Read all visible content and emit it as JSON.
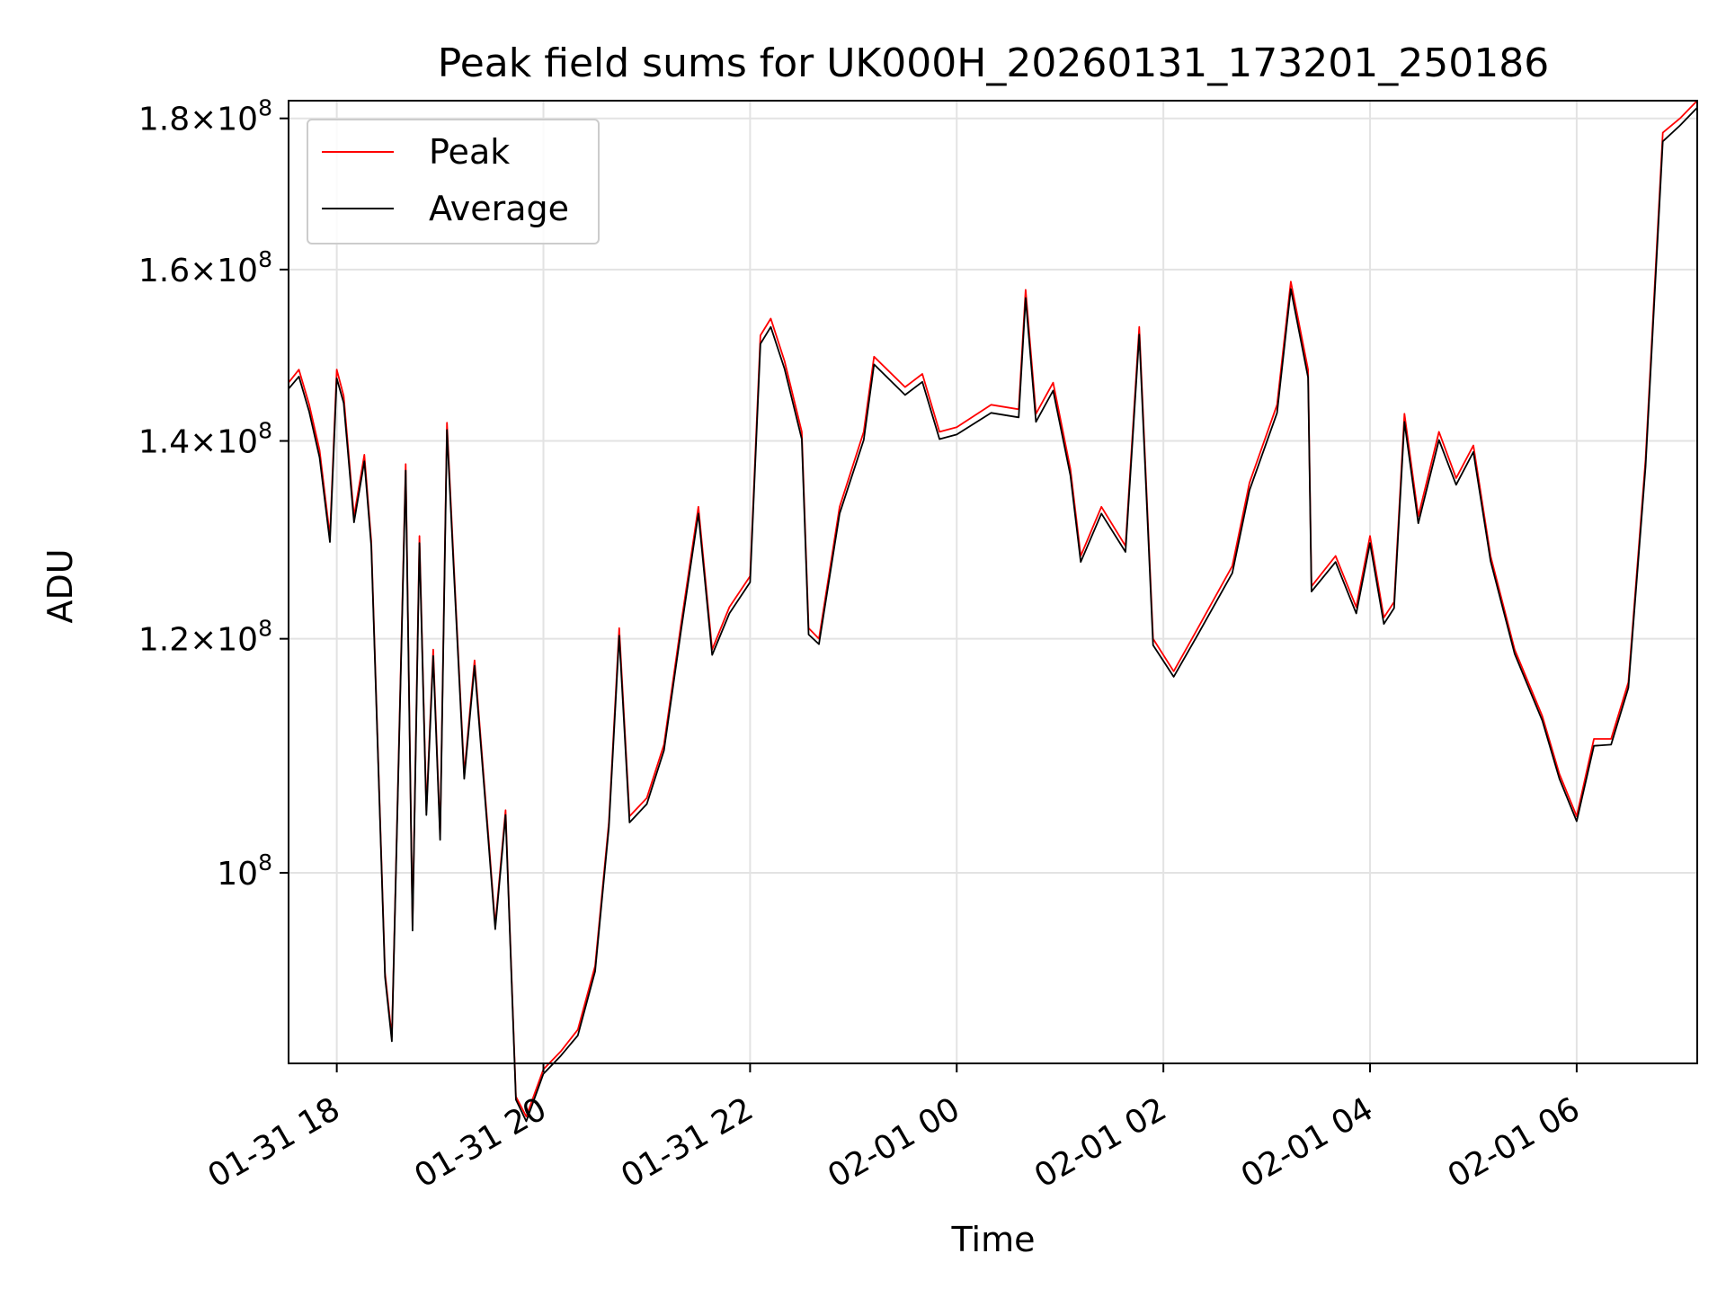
{
  "chart_data": {
    "type": "line",
    "title": "Peak field sums for UK000H_20260131_173201_250186",
    "xlabel": "Time",
    "ylabel": "ADU",
    "y_scale": "log",
    "grid": true,
    "legend_position": "top-left",
    "xlim": [
      "2026-01-31 17:32",
      "2026-02-01 07:10"
    ],
    "ylim": [
      86200000,
      182500000
    ],
    "x_ticks": [
      {
        "value": "2026-01-31 18:00",
        "label": "01-31 18"
      },
      {
        "value": "2026-01-31 20:00",
        "label": "01-31 20"
      },
      {
        "value": "2026-01-31 22:00",
        "label": "01-31 22"
      },
      {
        "value": "2026-02-01 00:00",
        "label": "02-01 00"
      },
      {
        "value": "2026-02-01 02:00",
        "label": "02-01 02"
      },
      {
        "value": "2026-02-01 04:00",
        "label": "02-01 04"
      },
      {
        "value": "2026-02-01 06:00",
        "label": "02-01 06"
      }
    ],
    "y_ticks": [
      {
        "value": 100000000,
        "mantissa": "",
        "exponent": "8"
      },
      {
        "value": 120000000,
        "mantissa": "1.2",
        "exponent": "8"
      },
      {
        "value": 140000000,
        "mantissa": "1.4",
        "exponent": "8"
      },
      {
        "value": 160000000,
        "mantissa": "1.6",
        "exponent": "8"
      },
      {
        "value": 180000000,
        "mantissa": "1.8",
        "exponent": "8"
      }
    ],
    "series": [
      {
        "name": "Peak",
        "color": "#ff0000",
        "points": [
          [
            "2026-01-31 17:32",
            146.5
          ],
          [
            "2026-01-31 17:38",
            148.0
          ],
          [
            "2026-01-31 17:44",
            144.0
          ],
          [
            "2026-01-31 17:50",
            139.0
          ],
          [
            "2026-01-31 17:56",
            130.0
          ],
          [
            "2026-01-31 18:00",
            148.0
          ],
          [
            "2026-01-31 18:04",
            145.0
          ],
          [
            "2026-01-31 18:10",
            132.0
          ],
          [
            "2026-01-31 18:16",
            138.5
          ],
          [
            "2026-01-31 18:20",
            129.5
          ],
          [
            "2026-01-31 18:28",
            92.5
          ],
          [
            "2026-01-31 18:32",
            88.0
          ],
          [
            "2026-01-31 18:40",
            137.5
          ],
          [
            "2026-01-31 18:44",
            96.0
          ],
          [
            "2026-01-31 18:48",
            130.0
          ],
          [
            "2026-01-31 18:52",
            105.0
          ],
          [
            "2026-01-31 18:56",
            119.0
          ],
          [
            "2026-01-31 19:00",
            103.0
          ],
          [
            "2026-01-31 19:04",
            142.0
          ],
          [
            "2026-01-31 19:08",
            127.0
          ],
          [
            "2026-01-31 19:14",
            108.0
          ],
          [
            "2026-01-31 19:20",
            118.0
          ],
          [
            "2026-01-31 19:28",
            103.0
          ],
          [
            "2026-01-31 19:32",
            96.0
          ],
          [
            "2026-01-31 19:38",
            105.0
          ],
          [
            "2026-01-31 19:44",
            84.0
          ],
          [
            "2026-01-31 19:50",
            82.7
          ],
          [
            "2026-01-31 20:00",
            85.8
          ],
          [
            "2026-01-31 20:10",
            87.0
          ],
          [
            "2026-01-31 20:20",
            88.5
          ],
          [
            "2026-01-31 20:30",
            93.0
          ],
          [
            "2026-01-31 20:38",
            104.0
          ],
          [
            "2026-01-31 20:44",
            121.0
          ],
          [
            "2026-01-31 20:50",
            104.5
          ],
          [
            "2026-01-31 21:00",
            106.0
          ],
          [
            "2026-01-31 21:10",
            110.5
          ],
          [
            "2026-01-31 21:20",
            121.5
          ],
          [
            "2026-01-31 21:30",
            133.0
          ],
          [
            "2026-01-31 21:38",
            119.0
          ],
          [
            "2026-01-31 21:48",
            123.0
          ],
          [
            "2026-01-31 22:00",
            126.0
          ],
          [
            "2026-01-31 22:06",
            152.0
          ],
          [
            "2026-01-31 22:12",
            154.0
          ],
          [
            "2026-01-31 22:20",
            149.0
          ],
          [
            "2026-01-31 22:30",
            141.0
          ],
          [
            "2026-01-31 22:34",
            121.0
          ],
          [
            "2026-01-31 22:40",
            120.0
          ],
          [
            "2026-01-31 22:52",
            133.0
          ],
          [
            "2026-01-31 23:06",
            141.0
          ],
          [
            "2026-01-31 23:12",
            149.5
          ],
          [
            "2026-01-31 23:30",
            146.0
          ],
          [
            "2026-01-31 23:40",
            147.5
          ],
          [
            "2026-01-31 23:50",
            141.0
          ],
          [
            "2026-02-01 00:00",
            141.5
          ],
          [
            "2026-02-01 00:20",
            144.0
          ],
          [
            "2026-02-01 00:36",
            143.5
          ],
          [
            "2026-02-01 00:40",
            157.5
          ],
          [
            "2026-02-01 00:46",
            143.0
          ],
          [
            "2026-02-01 00:56",
            146.5
          ],
          [
            "2026-02-01 01:06",
            137.0
          ],
          [
            "2026-02-01 01:12",
            128.0
          ],
          [
            "2026-02-01 01:24",
            133.0
          ],
          [
            "2026-02-01 01:38",
            129.0
          ],
          [
            "2026-02-01 01:46",
            153.0
          ],
          [
            "2026-02-01 01:54",
            120.0
          ],
          [
            "2026-02-01 02:06",
            117.0
          ],
          [
            "2026-02-01 02:20",
            121.0
          ],
          [
            "2026-02-01 02:40",
            127.0
          ],
          [
            "2026-02-01 02:50",
            135.5
          ],
          [
            "2026-02-01 03:06",
            144.0
          ],
          [
            "2026-02-01 03:14",
            158.5
          ],
          [
            "2026-02-01 03:24",
            148.0
          ],
          [
            "2026-02-01 03:26",
            125.0
          ],
          [
            "2026-02-01 03:40",
            128.0
          ],
          [
            "2026-02-01 03:52",
            123.0
          ],
          [
            "2026-02-01 04:00",
            130.0
          ],
          [
            "2026-02-01 04:08",
            122.0
          ],
          [
            "2026-02-01 04:14",
            123.5
          ],
          [
            "2026-02-01 04:20",
            143.0
          ],
          [
            "2026-02-01 04:28",
            132.0
          ],
          [
            "2026-02-01 04:40",
            141.0
          ],
          [
            "2026-02-01 04:50",
            136.0
          ],
          [
            "2026-02-01 05:00",
            139.5
          ],
          [
            "2026-02-01 05:10",
            128.0
          ],
          [
            "2026-02-01 05:24",
            119.0
          ],
          [
            "2026-02-01 05:40",
            113.0
          ],
          [
            "2026-02-01 05:50",
            108.0
          ],
          [
            "2026-02-01 06:00",
            104.5
          ],
          [
            "2026-02-01 06:10",
            111.0
          ],
          [
            "2026-02-01 06:20",
            111.0
          ],
          [
            "2026-02-01 06:30",
            116.0
          ],
          [
            "2026-02-01 06:40",
            138.0
          ],
          [
            "2026-02-01 06:50",
            178.0
          ],
          [
            "2026-02-01 07:00",
            180.0
          ],
          [
            "2026-02-01 07:10",
            182.5
          ]
        ]
      },
      {
        "name": "Average",
        "color": "#000000",
        "points": [
          [
            "2026-01-31 17:32",
            145.8
          ],
          [
            "2026-01-31 17:38",
            147.2
          ],
          [
            "2026-01-31 17:44",
            143.2
          ],
          [
            "2026-01-31 17:50",
            138.2
          ],
          [
            "2026-01-31 17:56",
            129.4
          ],
          [
            "2026-01-31 18:00",
            147.0
          ],
          [
            "2026-01-31 18:04",
            144.2
          ],
          [
            "2026-01-31 18:10",
            131.4
          ],
          [
            "2026-01-31 18:16",
            137.8
          ],
          [
            "2026-01-31 18:20",
            129.0
          ],
          [
            "2026-01-31 18:28",
            92.2
          ],
          [
            "2026-01-31 18:32",
            87.7
          ],
          [
            "2026-01-31 18:40",
            136.8
          ],
          [
            "2026-01-31 18:44",
            95.6
          ],
          [
            "2026-01-31 18:48",
            129.3
          ],
          [
            "2026-01-31 18:52",
            104.6
          ],
          [
            "2026-01-31 18:56",
            118.4
          ],
          [
            "2026-01-31 19:00",
            102.6
          ],
          [
            "2026-01-31 19:04",
            141.2
          ],
          [
            "2026-01-31 19:08",
            126.4
          ],
          [
            "2026-01-31 19:14",
            107.6
          ],
          [
            "2026-01-31 19:20",
            117.5
          ],
          [
            "2026-01-31 19:28",
            102.6
          ],
          [
            "2026-01-31 19:32",
            95.7
          ],
          [
            "2026-01-31 19:38",
            104.6
          ],
          [
            "2026-01-31 19:44",
            83.8
          ],
          [
            "2026-01-31 19:50",
            82.4
          ],
          [
            "2026-01-31 20:00",
            85.5
          ],
          [
            "2026-01-31 20:10",
            86.7
          ],
          [
            "2026-01-31 20:20",
            88.1
          ],
          [
            "2026-01-31 20:30",
            92.6
          ],
          [
            "2026-01-31 20:38",
            103.6
          ],
          [
            "2026-01-31 20:44",
            120.3
          ],
          [
            "2026-01-31 20:50",
            104.0
          ],
          [
            "2026-01-31 21:00",
            105.5
          ],
          [
            "2026-01-31 21:10",
            110.0
          ],
          [
            "2026-01-31 21:20",
            120.9
          ],
          [
            "2026-01-31 21:30",
            132.3
          ],
          [
            "2026-01-31 21:38",
            118.5
          ],
          [
            "2026-01-31 21:48",
            122.4
          ],
          [
            "2026-01-31 22:00",
            125.4
          ],
          [
            "2026-01-31 22:06",
            151.0
          ],
          [
            "2026-01-31 22:12",
            153.0
          ],
          [
            "2026-01-31 22:20",
            148.1
          ],
          [
            "2026-01-31 22:30",
            140.2
          ],
          [
            "2026-01-31 22:34",
            120.4
          ],
          [
            "2026-01-31 22:40",
            119.5
          ],
          [
            "2026-01-31 22:52",
            132.3
          ],
          [
            "2026-01-31 23:06",
            140.1
          ],
          [
            "2026-01-31 23:12",
            148.6
          ],
          [
            "2026-01-31 23:30",
            145.1
          ],
          [
            "2026-01-31 23:40",
            146.6
          ],
          [
            "2026-01-31 23:50",
            140.2
          ],
          [
            "2026-02-01 00:00",
            140.7
          ],
          [
            "2026-02-01 00:20",
            143.1
          ],
          [
            "2026-02-01 00:36",
            142.6
          ],
          [
            "2026-02-01 00:40",
            156.5
          ],
          [
            "2026-02-01 00:46",
            142.1
          ],
          [
            "2026-02-01 00:56",
            145.6
          ],
          [
            "2026-02-01 01:06",
            136.3
          ],
          [
            "2026-02-01 01:12",
            127.4
          ],
          [
            "2026-02-01 01:24",
            132.3
          ],
          [
            "2026-02-01 01:38",
            128.4
          ],
          [
            "2026-02-01 01:46",
            152.1
          ],
          [
            "2026-02-01 01:54",
            119.4
          ],
          [
            "2026-02-01 02:06",
            116.5
          ],
          [
            "2026-02-01 02:20",
            120.4
          ],
          [
            "2026-02-01 02:40",
            126.3
          ],
          [
            "2026-02-01 02:50",
            134.7
          ],
          [
            "2026-02-01 03:06",
            143.1
          ],
          [
            "2026-02-01 03:14",
            157.6
          ],
          [
            "2026-02-01 03:24",
            147.1
          ],
          [
            "2026-02-01 03:26",
            124.5
          ],
          [
            "2026-02-01 03:40",
            127.4
          ],
          [
            "2026-02-01 03:52",
            122.4
          ],
          [
            "2026-02-01 04:00",
            129.3
          ],
          [
            "2026-02-01 04:08",
            121.4
          ],
          [
            "2026-02-01 04:14",
            122.9
          ],
          [
            "2026-02-01 04:20",
            142.1
          ],
          [
            "2026-02-01 04:28",
            131.3
          ],
          [
            "2026-02-01 04:40",
            140.1
          ],
          [
            "2026-02-01 04:50",
            135.3
          ],
          [
            "2026-02-01 05:00",
            138.8
          ],
          [
            "2026-02-01 05:10",
            127.5
          ],
          [
            "2026-02-01 05:24",
            118.6
          ],
          [
            "2026-02-01 05:40",
            112.6
          ],
          [
            "2026-02-01 05:50",
            107.6
          ],
          [
            "2026-02-01 06:00",
            104.1
          ],
          [
            "2026-02-01 06:10",
            110.4
          ],
          [
            "2026-02-01 06:20",
            110.5
          ],
          [
            "2026-02-01 06:30",
            115.5
          ],
          [
            "2026-02-01 06:40",
            137.2
          ],
          [
            "2026-02-01 06:50",
            176.8
          ],
          [
            "2026-02-01 07:00",
            179.0
          ],
          [
            "2026-02-01 07:10",
            181.5
          ]
        ]
      }
    ],
    "y_point_unit": "millions ADU"
  }
}
